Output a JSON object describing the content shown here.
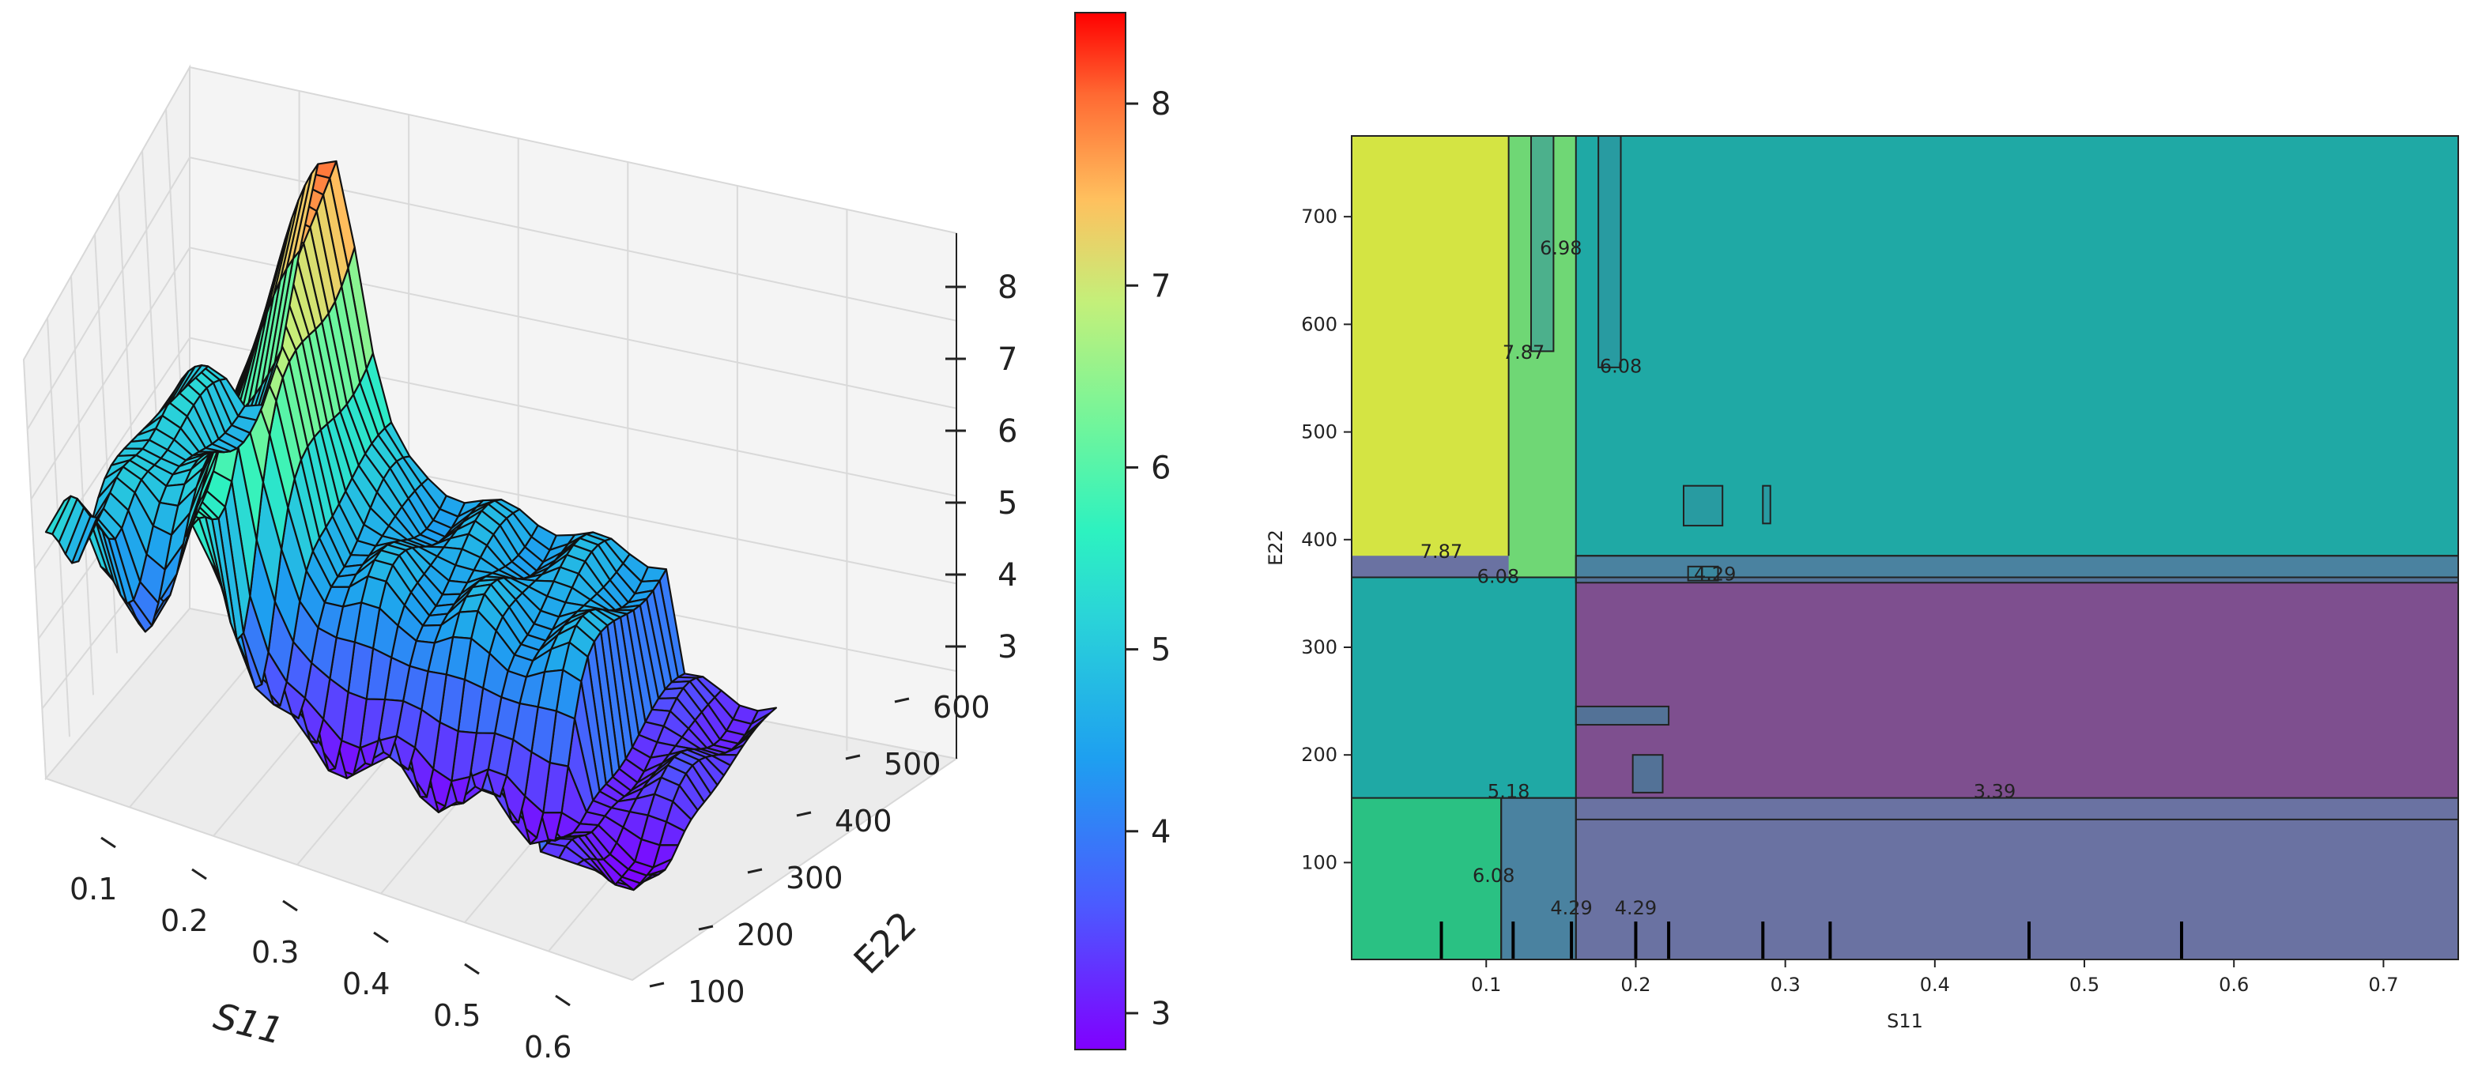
{
  "chart_data": [
    {
      "type": "surface3d",
      "xlabel": "S11",
      "ylabel": "E22",
      "zlabel": "",
      "x_ticks": [
        "0.1",
        "0.2",
        "0.3",
        "0.4",
        "0.5",
        "0.6"
      ],
      "y_ticks": [
        "100",
        "200",
        "300",
        "400",
        "500",
        "600"
      ],
      "z_ticks": [
        "3",
        "4",
        "5",
        "6",
        "7",
        "8"
      ],
      "xlim": [
        0.02,
        0.66
      ],
      "ylim": [
        20,
        780
      ],
      "zlim": [
        2.8,
        8.5
      ],
      "colormap": "rainbow",
      "colorbar": {
        "range": [
          2.8,
          8.5
        ],
        "ticks": [
          "3",
          "4",
          "5",
          "6",
          "7",
          "8"
        ],
        "position": "right of 3D plot"
      },
      "grid": true
    },
    {
      "type": "contour",
      "xlabel": "S11",
      "ylabel": "E22",
      "x_ticks": [
        0.1,
        0.2,
        0.3,
        0.4,
        0.5,
        0.6,
        0.7
      ],
      "y_ticks": [
        100,
        200,
        300,
        400,
        500,
        600,
        700
      ],
      "xlim": [
        0.01,
        0.75
      ],
      "ylim": [
        10,
        775
      ],
      "regions": [
        {
          "level": 7.87,
          "color": "#d4e443",
          "x": [
            0.01,
            0.115
          ],
          "y": [
            385,
            775
          ]
        },
        {
          "level": 6.08,
          "color": "#6fd775",
          "x": [
            0.115,
            0.16
          ],
          "y": [
            365,
            775
          ]
        },
        {
          "level": 6.08,
          "color": "#2ac183",
          "x": [
            0.01,
            0.11
          ],
          "y": [
            10,
            160
          ]
        },
        {
          "level": 5.18,
          "color": "#1fa9a5",
          "x": [
            0.16,
            0.75
          ],
          "y": [
            385,
            775
          ]
        },
        {
          "level": 5.18,
          "color": "#1fa9a5",
          "x": [
            0.01,
            0.16
          ],
          "y": [
            160,
            365
          ]
        },
        {
          "level": 3.39,
          "color": "#7e4f8f",
          "x": [
            0.16,
            0.75
          ],
          "y": [
            160,
            365
          ]
        },
        {
          "level": 4.29,
          "color": "#6a72a2",
          "x": [
            0.16,
            0.75
          ],
          "y": [
            10,
            140
          ]
        }
      ],
      "contour_labels": [
        {
          "text": "7.87",
          "x": 0.07,
          "y": 383
        },
        {
          "text": "7.87",
          "x": 0.125,
          "y": 568
        },
        {
          "text": "6.98",
          "x": 0.15,
          "y": 665
        },
        {
          "text": "6.08",
          "x": 0.19,
          "y": 555
        },
        {
          "text": "6.08",
          "x": 0.108,
          "y": 360
        },
        {
          "text": "4.29",
          "x": 0.253,
          "y": 362
        },
        {
          "text": "5.18",
          "x": 0.115,
          "y": 160
        },
        {
          "text": "3.39",
          "x": 0.44,
          "y": 160
        },
        {
          "text": "6.08",
          "x": 0.105,
          "y": 82
        },
        {
          "text": "4.29",
          "x": 0.157,
          "y": 52
        },
        {
          "text": "4.29",
          "x": 0.2,
          "y": 52
        }
      ],
      "rug_ticks": [
        0.07,
        0.118,
        0.157,
        0.2,
        0.222,
        0.285,
        0.33,
        0.463,
        0.565
      ]
    }
  ]
}
